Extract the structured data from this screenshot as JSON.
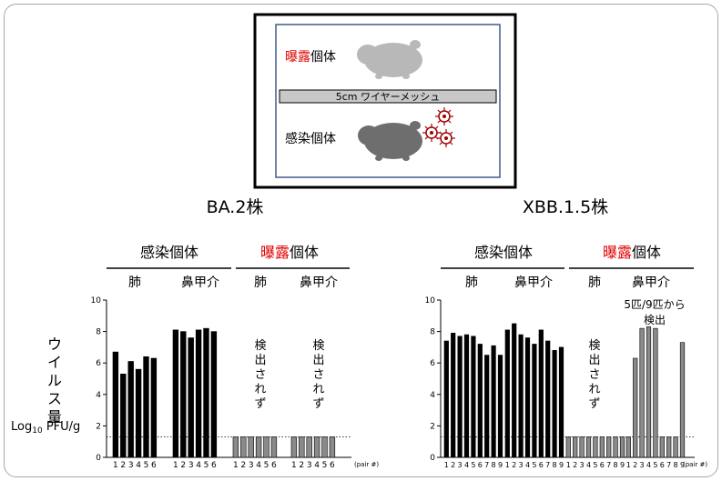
{
  "setup": {
    "exposed_prefix": "曝露",
    "exposed_suffix": "個体",
    "mesh_label": "5cm ワイヤーメッシュ",
    "infected_label": "感染個体"
  },
  "colors": {
    "accent_red": "#e00000",
    "purple": "#7030a0",
    "xbb_red": "#c00000",
    "infected_bar": "#000000",
    "exposed_bar": "#8a8a8a",
    "box_border": "#3f5a8c",
    "mesh_fill": "#c8c8c8",
    "hamster_light": "#b8b8b8",
    "hamster_dark": "#6e6e6e"
  },
  "icons": [
    "hamster-icon",
    "virus-icon"
  ],
  "panels": [
    {
      "strain": "BA.2株",
      "strain_color": "#7030a0",
      "infected_header": "感染個体",
      "exposed_header_prefix": "曝露",
      "exposed_header_suffix": "個体",
      "sub_labels": [
        "肺",
        "鼻甲介",
        "肺",
        "鼻甲介"
      ],
      "not_detected": "検出されず",
      "partial_detect_line1": "",
      "partial_detect_line2": "",
      "y_ticks": [
        "0",
        "2",
        "4",
        "6",
        "8",
        "10"
      ],
      "pair_label": "(pair #)",
      "groups": [
        {
          "tick_labels": [
            "1",
            "2",
            "3",
            "4",
            "5",
            "6"
          ]
        },
        {
          "tick_labels": [
            "1",
            "2",
            "3",
            "4",
            "5",
            "6"
          ]
        },
        {
          "tick_labels": [
            "1",
            "2",
            "3",
            "4",
            "5",
            "6"
          ]
        },
        {
          "tick_labels": [
            "1",
            "2",
            "3",
            "4",
            "5",
            "6"
          ]
        }
      ]
    },
    {
      "strain": "XBB.1.5株",
      "strain_color": "#c00000",
      "infected_header": "感染個体",
      "exposed_header_prefix": "曝露",
      "exposed_header_suffix": "個体",
      "sub_labels": [
        "肺",
        "鼻甲介",
        "肺",
        "鼻甲介"
      ],
      "not_detected": "検出されず",
      "partial_detect_line1": "5匹/9匹から",
      "partial_detect_line2": "検出",
      "y_ticks": [
        "0",
        "2",
        "4",
        "6",
        "8",
        "10"
      ],
      "pair_label": "(pair #)",
      "groups": [
        {
          "tick_labels": [
            "1",
            "2",
            "3",
            "4",
            "5",
            "6",
            "7",
            "8",
            "9"
          ]
        },
        {
          "tick_labels": [
            "1",
            "2",
            "3",
            "4",
            "5",
            "6",
            "7",
            "8",
            "9"
          ]
        },
        {
          "tick_labels": [
            "1",
            "2",
            "3",
            "4",
            "5",
            "6",
            "7",
            "8",
            "9"
          ]
        },
        {
          "tick_labels": [
            "1",
            "2",
            "3",
            "4",
            "5",
            "6",
            "7",
            "8",
            "9"
          ]
        }
      ]
    }
  ],
  "y_axis_label": {
    "main": "ウイルス量",
    "unit_prefix": "Log",
    "unit_sub": "10",
    "unit_suffix": " PFU/g"
  },
  "chart_data": [
    {
      "type": "bar",
      "title": "BA.2株",
      "ylabel": "ウイルス量 Log10 PFU/g",
      "xlabel": "(pair #)",
      "ylim": [
        0,
        10
      ],
      "detection_limit": 1.3,
      "categories": [
        "1",
        "2",
        "3",
        "4",
        "5",
        "6"
      ],
      "series": [
        {
          "name": "感染個体 肺",
          "values": [
            6.7,
            5.3,
            6.1,
            5.6,
            6.4,
            6.3
          ]
        },
        {
          "name": "感染個体 鼻甲介",
          "values": [
            8.1,
            8.0,
            7.6,
            8.1,
            8.2,
            8.0
          ]
        },
        {
          "name": "曝露個体 肺",
          "values": [
            1.3,
            1.3,
            1.3,
            1.3,
            1.3,
            1.3
          ]
        },
        {
          "name": "曝露個体 鼻甲介",
          "values": [
            1.3,
            1.3,
            1.3,
            1.3,
            1.3,
            1.3
          ]
        }
      ]
    },
    {
      "type": "bar",
      "title": "XBB.1.5株",
      "ylabel": "ウイルス量 Log10 PFU/g",
      "xlabel": "(pair #)",
      "ylim": [
        0,
        10
      ],
      "detection_limit": 1.3,
      "categories": [
        "1",
        "2",
        "3",
        "4",
        "5",
        "6",
        "7",
        "8",
        "9"
      ],
      "series": [
        {
          "name": "感染個体 肺",
          "values": [
            7.4,
            7.9,
            7.7,
            7.8,
            7.7,
            7.2,
            6.5,
            7.1,
            6.5
          ]
        },
        {
          "name": "感染個体 鼻甲介",
          "values": [
            8.1,
            8.5,
            7.8,
            7.6,
            7.2,
            8.1,
            7.4,
            6.8,
            7.0
          ]
        },
        {
          "name": "曝露個体 肺",
          "values": [
            1.3,
            1.3,
            1.3,
            1.3,
            1.3,
            1.3,
            1.3,
            1.3,
            1.3
          ]
        },
        {
          "name": "曝露個体 鼻甲介",
          "values": [
            1.3,
            6.3,
            8.2,
            8.3,
            8.2,
            1.3,
            1.3,
            1.3,
            7.3
          ]
        }
      ]
    }
  ]
}
